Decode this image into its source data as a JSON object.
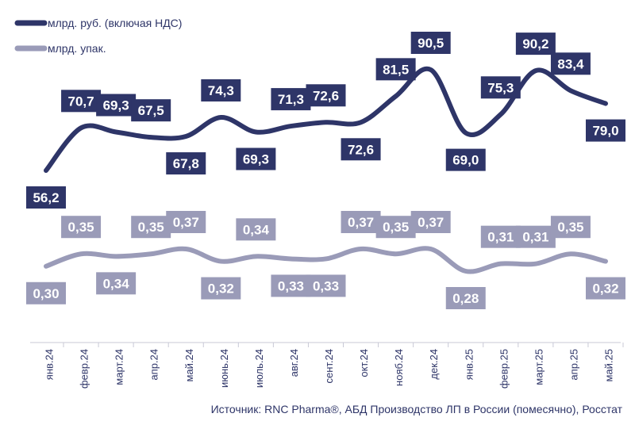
{
  "chart_data": {
    "type": "line",
    "categories": [
      "янв.24",
      "февр.24",
      "март.24",
      "апр.24",
      "май.24",
      "июнь.24",
      "июль.24",
      "авг.24",
      "сент.24",
      "окт.24",
      "нояб.24",
      "дек.24",
      "янв.25",
      "февр.25",
      "март.25",
      "апр.25",
      "май.25"
    ],
    "series": [
      {
        "name": "млрд. руб. (включая НДС)",
        "color": "#2e3568",
        "values": [
          56.2,
          70.7,
          69.3,
          67.5,
          67.8,
          74.3,
          69.3,
          71.3,
          72.6,
          72.6,
          81.5,
          90.5,
          69.0,
          75.3,
          90.2,
          83.4,
          79.0
        ],
        "labels": [
          "56,2",
          "70,7",
          "69,3",
          "67,5",
          "67,8",
          "74,3",
          "69,3",
          "71,3",
          "72,6",
          "72,6",
          "81,5",
          "90,5",
          "69,0",
          "75,3",
          "90,2",
          "83,4",
          "79,0"
        ],
        "label_side": [
          "below",
          "above",
          "above",
          "above",
          "below",
          "above",
          "below",
          "above",
          "above",
          "below",
          "above",
          "above",
          "below",
          "above",
          "above",
          "above",
          "below"
        ]
      },
      {
        "name": "млрд. упак.",
        "color": "#9a9bb8",
        "values": [
          0.3,
          0.35,
          0.34,
          0.35,
          0.37,
          0.32,
          0.34,
          0.33,
          0.33,
          0.37,
          0.35,
          0.37,
          0.28,
          0.31,
          0.31,
          0.35,
          0.32
        ],
        "labels": [
          "0,30",
          "0,35",
          "0,34",
          "0,35",
          "0,37",
          "0,32",
          "0,34",
          "0,33",
          "0,33",
          "0,37",
          "0,35",
          "0,37",
          "0,28",
          "0,31",
          "0,31",
          "0,35",
          "0,32"
        ],
        "label_side": [
          "below",
          "above",
          "below",
          "above",
          "above",
          "below",
          "above",
          "below",
          "below",
          "above",
          "above",
          "above",
          "below",
          "above",
          "above",
          "above",
          "below"
        ]
      }
    ],
    "legend_position": "top-left",
    "grid": false
  },
  "source": "Источник: RNC Pharma®, АБД Производство ЛП в России (помесячно), Росстат"
}
